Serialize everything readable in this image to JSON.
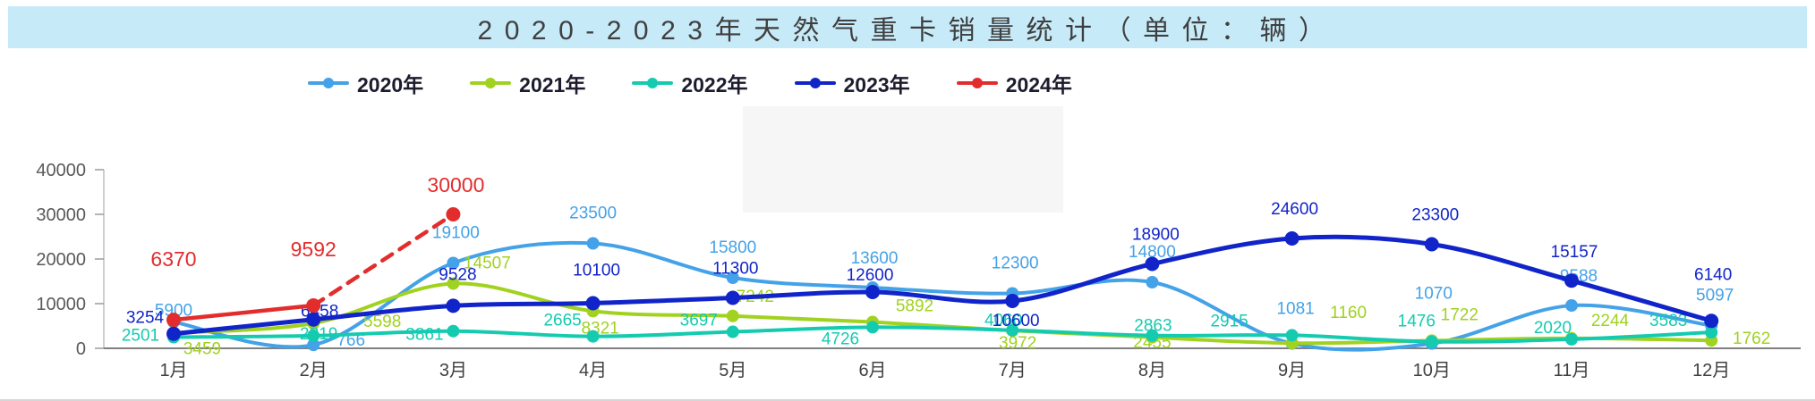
{
  "title": "2020-2023年天然气重卡销量统计（单位：辆）",
  "chart_data": {
    "type": "line",
    "categories": [
      "1月",
      "2月",
      "3月",
      "4月",
      "5月",
      "6月",
      "7月",
      "8月",
      "9月",
      "10月",
      "11月",
      "12月"
    ],
    "series": [
      {
        "name": "2020年",
        "color": "#44a2e8",
        "style": "smooth",
        "values": [
          5900,
          766,
          19100,
          23500,
          15800,
          13600,
          12300,
          14800,
          1081,
          1070,
          9588,
          5097
        ]
      },
      {
        "name": "2021年",
        "color": "#a0d21f",
        "style": "smooth",
        "values": [
          3459,
          5598,
          14507,
          8321,
          7242,
          5892,
          3972,
          2455,
          1160,
          1722,
          2244,
          1762
        ]
      },
      {
        "name": "2022年",
        "color": "#14cbb0",
        "style": "smooth",
        "values": [
          2501,
          2819,
          3861,
          2665,
          3697,
          4726,
          4060,
          2863,
          2915,
          1476,
          2020,
          3583
        ]
      },
      {
        "name": "2023年",
        "color": "#1124c9",
        "style": "smooth",
        "values": [
          3254,
          6458,
          9528,
          10100,
          11300,
          12600,
          10600,
          18900,
          24600,
          23300,
          15157,
          6140
        ]
      },
      {
        "name": "2024年",
        "color": "#e32d2d",
        "style": "straight",
        "dashed_from_index": 1,
        "values": [
          6370,
          9592,
          30000
        ]
      }
    ],
    "ylim": [
      0,
      40000
    ],
    "yticks": [
      0,
      10000,
      20000,
      30000,
      40000
    ],
    "grid": false,
    "legend_position": "top",
    "data_labels": true
  }
}
